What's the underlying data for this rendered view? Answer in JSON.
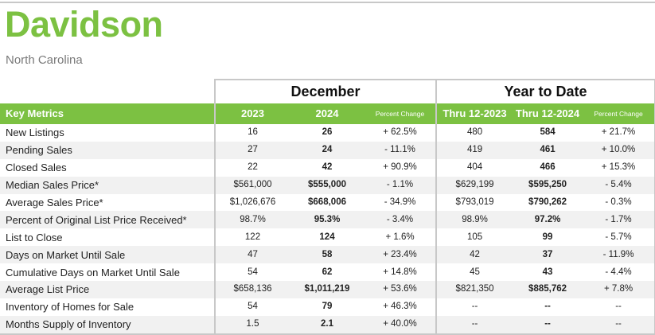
{
  "title": "Davidson",
  "subtitle": "North Carolina",
  "groups": {
    "month": "December",
    "ytd": "Year to Date"
  },
  "header": {
    "metric": "Key Metrics",
    "col1": "2023",
    "col2": "2024",
    "col3": "Percent Change",
    "col4": "Thru 12-2023",
    "col5": "Thru 12-2024",
    "col6": "Percent Change"
  },
  "rows": [
    {
      "label": "New Listings",
      "m2023": "16",
      "m2024": "26",
      "mpct": "+ 62.5%",
      "y2023": "480",
      "y2024": "584",
      "ypct": "+ 21.7%"
    },
    {
      "label": "Pending Sales",
      "m2023": "27",
      "m2024": "24",
      "mpct": "- 11.1%",
      "y2023": "419",
      "y2024": "461",
      "ypct": "+ 10.0%"
    },
    {
      "label": "Closed Sales",
      "m2023": "22",
      "m2024": "42",
      "mpct": "+ 90.9%",
      "y2023": "404",
      "y2024": "466",
      "ypct": "+ 15.3%"
    },
    {
      "label": "Median Sales Price*",
      "m2023": "$561,000",
      "m2024": "$555,000",
      "mpct": "- 1.1%",
      "y2023": "$629,199",
      "y2024": "$595,250",
      "ypct": "- 5.4%"
    },
    {
      "label": "Average Sales Price*",
      "m2023": "$1,026,676",
      "m2024": "$668,006",
      "mpct": "- 34.9%",
      "y2023": "$793,019",
      "y2024": "$790,262",
      "ypct": "- 0.3%"
    },
    {
      "label": "Percent of Original List Price Received*",
      "m2023": "98.7%",
      "m2024": "95.3%",
      "mpct": "- 3.4%",
      "y2023": "98.9%",
      "y2024": "97.2%",
      "ypct": "- 1.7%"
    },
    {
      "label": "List to Close",
      "m2023": "122",
      "m2024": "124",
      "mpct": "+ 1.6%",
      "y2023": "105",
      "y2024": "99",
      "ypct": "- 5.7%"
    },
    {
      "label": "Days on Market Until Sale",
      "m2023": "47",
      "m2024": "58",
      "mpct": "+ 23.4%",
      "y2023": "42",
      "y2024": "37",
      "ypct": "- 11.9%"
    },
    {
      "label": "Cumulative Days on Market Until Sale",
      "m2023": "54",
      "m2024": "62",
      "mpct": "+ 14.8%",
      "y2023": "45",
      "y2024": "43",
      "ypct": "- 4.4%"
    },
    {
      "label": "Average List Price",
      "m2023": "$658,136",
      "m2024": "$1,011,219",
      "mpct": "+ 53.6%",
      "y2023": "$821,350",
      "y2024": "$885,762",
      "ypct": "+ 7.8%"
    },
    {
      "label": "Inventory of Homes for Sale",
      "m2023": "54",
      "m2024": "79",
      "mpct": "+ 46.3%",
      "y2023": "--",
      "y2024": "--",
      "ypct": "--"
    },
    {
      "label": "Months Supply of Inventory",
      "m2023": "1.5",
      "m2024": "2.1",
      "mpct": "+ 40.0%",
      "y2023": "--",
      "y2024": "--",
      "ypct": "--"
    }
  ]
}
